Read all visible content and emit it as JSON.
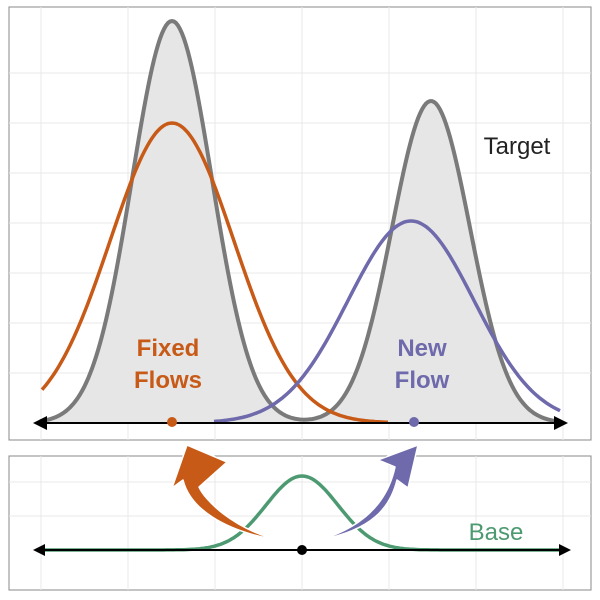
{
  "labels": {
    "target": "Target",
    "fixed_flows_line1": "Fixed",
    "fixed_flows_line2": "Flows",
    "new_flow_line1": "New",
    "new_flow_line2": "Flow",
    "base": "Base"
  },
  "colors": {
    "target_fill": "#e6e6e6",
    "target_stroke": "#7a7a7a",
    "fixed_flows": "#c85a17",
    "new_flow": "#6e6aab",
    "base": "#4d9a72",
    "axis": "#000000",
    "grid": "#e8e8e8",
    "panel_border": "#888888"
  }
}
